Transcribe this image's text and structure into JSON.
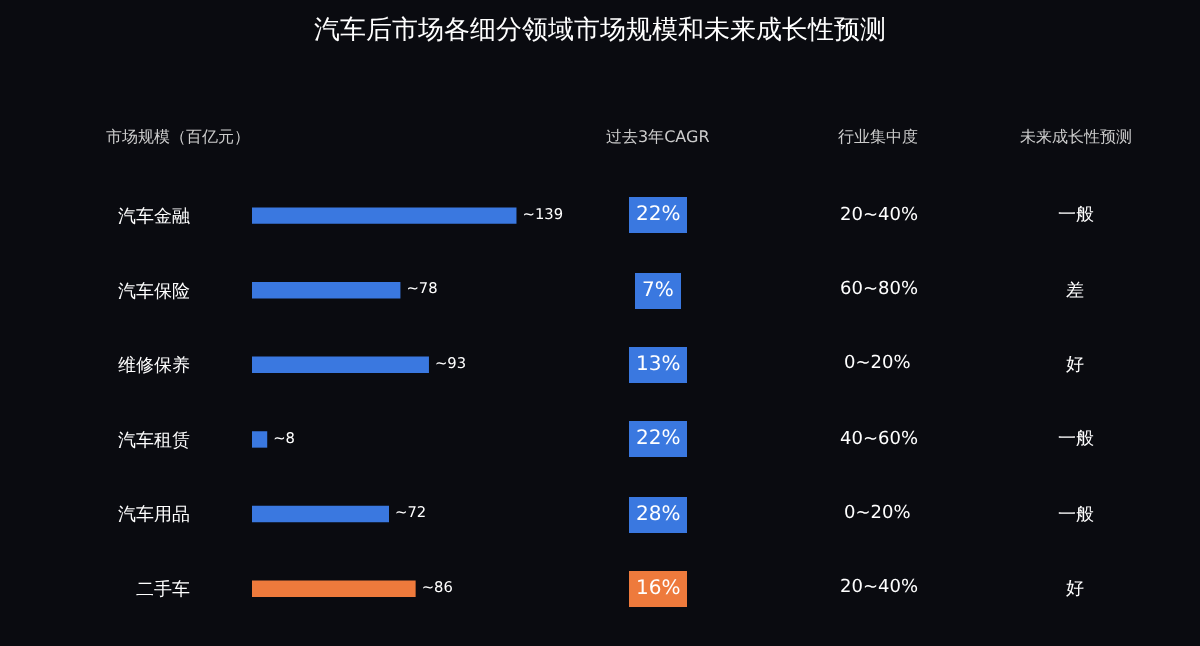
{
  "chart_data": {
    "type": "bar",
    "orientation": "horizontal",
    "title": "汽车后市场各细分领域市场规模和未来成长性预测",
    "xlabel": "市场规模（百亿元）",
    "categories": [
      "汽车金融",
      "汽车保险",
      "维修保养",
      "汽车租赁",
      "汽车用品",
      "二手车"
    ],
    "values": [
      139,
      78,
      93,
      8,
      72,
      86
    ],
    "colors": [
      "#3a78e0",
      "#3a78e0",
      "#3a78e0",
      "#3a78e0",
      "#3a78e0",
      "#ee7a3c"
    ],
    "value_labels": [
      "~139",
      "~78",
      "~93",
      "~8",
      "~72",
      "~86"
    ],
    "annotations": [
      "过去3年CAGR",
      "22%",
      "7%",
      "13%",
      "22%",
      "28%",
      "16%",
      "行业集中度",
      "20~40%",
      "60~80%",
      "0~20%",
      "40~60%",
      "0~20%",
      "20~40%",
      "未来成长性预测",
      "一般",
      "差",
      "好",
      "一般",
      "一般",
      "好"
    ]
  }
}
